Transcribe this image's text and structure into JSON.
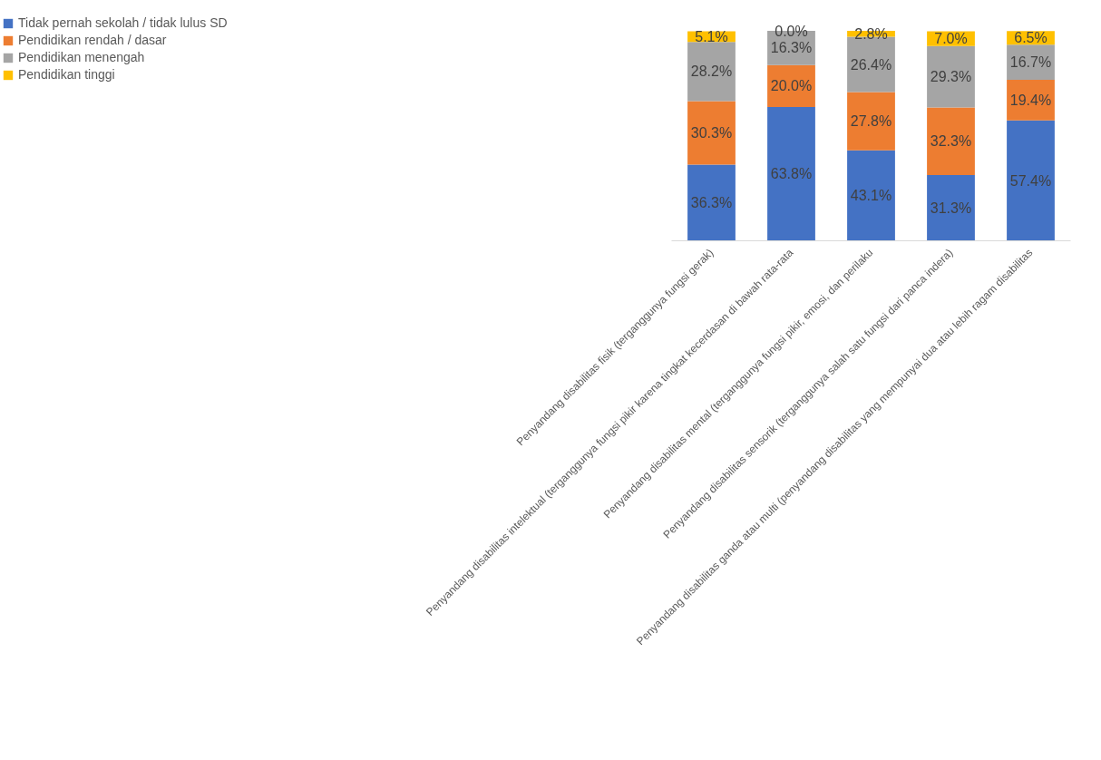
{
  "chart_data": {
    "type": "bar",
    "stacked": true,
    "legend": "left",
    "grid": false,
    "categories": [
      "Penyandang disabilitas fisik (terganggunya fungsi gerak)",
      "Penyandang disabilitas intelektual (terganggunya fungsi pikir karena tingkat kecerdasan di bawah rata-rata",
      "Penyandang disabilitas mental (terganggunya fungsi pikir, emosi, dan perilaku",
      "Penyandang disabilitas sensorik (terganggunya salah satu fungsi dari panca indera)",
      "Penyandang disabilitas ganda atau multi (penyandang disabilitas yang mempunyai dua atau lebih ragam disabilitas"
    ],
    "series": [
      {
        "name": "Tidak pernah sekolah / tidak lulus SD",
        "color": "#4472c4",
        "values": [
          36.3,
          63.8,
          43.1,
          31.3,
          57.4
        ],
        "value_labels": [
          "36.3%",
          "63.8%",
          "43.1%",
          "31.3%",
          "57.4%"
        ]
      },
      {
        "name": "Pendidikan rendah / dasar",
        "color": "#ed7d31",
        "values": [
          30.3,
          20.0,
          27.8,
          32.3,
          19.4
        ],
        "value_labels": [
          "30.3%",
          "20.0%",
          "27.8%",
          "32.3%",
          "19.4%"
        ]
      },
      {
        "name": "Pendidikan menengah",
        "color": "#a5a5a5",
        "values": [
          28.2,
          16.3,
          26.4,
          29.3,
          16.7
        ],
        "value_labels": [
          "28.2%",
          "16.3%",
          "26.4%",
          "29.3%",
          "16.7%"
        ]
      },
      {
        "name": "Pendidikan tinggi",
        "color": "#ffc000",
        "values": [
          5.1,
          0.0,
          2.8,
          7.0,
          6.5
        ],
        "value_labels": [
          "5.1%",
          "0.0%",
          "2.8%",
          "7.0%",
          "6.5%"
        ]
      }
    ]
  }
}
